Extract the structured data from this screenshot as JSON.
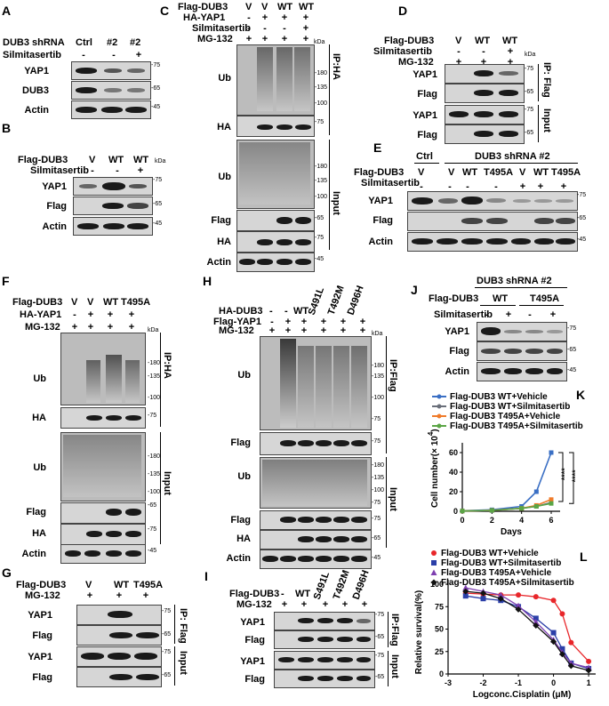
{
  "panels": {
    "A": "A",
    "B": "B",
    "C": "C",
    "D": "D",
    "E": "E",
    "F": "F",
    "G": "G",
    "H": "H",
    "I": "I",
    "J": "J",
    "K": "K",
    "L": "L"
  },
  "common": {
    "kda": "kDa",
    "plus": "+",
    "minus": "-"
  },
  "A": {
    "shrna": "DUB3 shRNA",
    "silm": "Silmitasertib",
    "cols": [
      "Ctrl",
      "#2",
      "#2"
    ],
    "silm_signs": [
      "-",
      "-",
      "+"
    ],
    "rows": [
      {
        "label": "YAP1",
        "kda": "-75"
      },
      {
        "label": "DUB3",
        "kda": "-65"
      },
      {
        "label": "Actin",
        "kda": "-45"
      }
    ]
  },
  "B": {
    "flag": "Flag-DUB3",
    "silm": "Silmitasertib",
    "cols": [
      "V",
      "WT",
      "WT"
    ],
    "silm_signs": [
      "-",
      "-",
      "+"
    ],
    "rows": [
      {
        "label": "YAP1",
        "kda": "-75"
      },
      {
        "label": "Flag",
        "kda": "-65"
      },
      {
        "label": "Actin",
        "kda": "-45"
      }
    ]
  },
  "C": {
    "flag": "Flag-DUB3",
    "ha": "HA-YAP1",
    "silm": "Silmitasertib",
    "mg": "MG-132",
    "flag_cols": [
      "V",
      "V",
      "WT",
      "WT"
    ],
    "ha_signs": [
      "-",
      "+",
      "+",
      "+"
    ],
    "silm_signs": [
      "-",
      "-",
      "-",
      "+"
    ],
    "mg_signs": [
      "+",
      "+",
      "+",
      "+"
    ],
    "rows": [
      "Ub",
      "HA",
      "Ub",
      "Flag",
      "HA",
      "Actin"
    ],
    "kda_ub": [
      "-180",
      "-135",
      "-100"
    ],
    "kda_ha": "-75",
    "kda_ub2": [
      "-180",
      "-135",
      "-100"
    ],
    "kda_flag": "-65",
    "kda_ha2": "-75",
    "kda_actin": "-45",
    "ip": "IP:HA",
    "input": "Input"
  },
  "D": {
    "flag": "Flag-DUB3",
    "silm": "Silmitasertib",
    "mg": "MG-132",
    "cols": [
      "V",
      "WT",
      "WT"
    ],
    "silm_signs": [
      "-",
      "-",
      "+"
    ],
    "mg_signs": [
      "+",
      "+",
      "+"
    ],
    "rows": [
      "YAP1",
      "Flag",
      "YAP1",
      "Flag"
    ],
    "kda": [
      "-75",
      "-65",
      "-75",
      "-65"
    ],
    "ip": "IP: Flag",
    "input": "Input"
  },
  "E": {
    "ctrl": "Ctrl",
    "shrna": "DUB3 shRNA #2",
    "flag": "Flag-DUB3",
    "silm": "Silmitasertib",
    "cols": [
      "V",
      "V",
      "WT",
      "T495A",
      "V",
      "WT",
      "T495A"
    ],
    "silm_signs": [
      "-",
      "-",
      "-",
      "-",
      "+",
      "+",
      "+"
    ],
    "rows": [
      {
        "label": "YAP1",
        "kda": "-75"
      },
      {
        "label": "Flag",
        "kda": "-65"
      },
      {
        "label": "Actin",
        "kda": "-45"
      }
    ]
  },
  "F": {
    "flag": "Flag-DUB3",
    "ha": "HA-YAP1",
    "mg": "MG-132",
    "cols": [
      "V",
      "V",
      "WT",
      "T495A"
    ],
    "ha_signs": [
      "-",
      "+",
      "+",
      "+"
    ],
    "mg_signs": [
      "+",
      "+",
      "+",
      "+"
    ],
    "rows": [
      "Ub",
      "HA",
      "Ub",
      "Flag",
      "HA",
      "Actin"
    ],
    "kda_ub": [
      "-180",
      "-135",
      "-100"
    ],
    "kda_ha": "-75",
    "kda_ub2": [
      "-180",
      "-135",
      "-100"
    ],
    "kda_flag": "-65",
    "kda_ha2": "-75",
    "kda_actin": "-45",
    "ip": "IP:HA",
    "input": "Input"
  },
  "G": {
    "flag": "Flag-DUB3",
    "mg": "MG-132",
    "cols": [
      "V",
      "WT",
      "T495A"
    ],
    "mg_signs": [
      "+",
      "+",
      "+"
    ],
    "rows": [
      "YAP1",
      "Flag",
      "YAP1",
      "Flag"
    ],
    "kda": [
      "-75",
      "-65",
      "-75",
      "-65"
    ],
    "ip": "IP: Flag",
    "input": "Input"
  },
  "H": {
    "ha": "HA-DUB3",
    "flag": "Flag-YAP1",
    "mg": "MG-132",
    "cols": [
      "-",
      "-",
      "WT",
      "S491L",
      "T492M",
      "D496H"
    ],
    "flag_signs": [
      "-",
      "+",
      "+",
      "+",
      "+",
      "+"
    ],
    "mg_signs": [
      "+",
      "+",
      "+",
      "+",
      "+",
      "+"
    ],
    "rows": [
      "Ub",
      "Flag",
      "Ub",
      "Flag",
      "HA",
      "Actin"
    ],
    "kda_ub": [
      "-180",
      "-135",
      "-100",
      "-75"
    ],
    "kda_flag": "-75",
    "kda_ub2": [
      "-180",
      "-135",
      "-100",
      "-75"
    ],
    "kda_flag2": "-75",
    "kda_ha": "-65",
    "kda_actin": "-45",
    "ip": "IP:Flag",
    "input": "Input"
  },
  "I": {
    "flag": "Flag-DUB3",
    "mg": "MG-132",
    "cols": [
      "-",
      "WT",
      "S491L",
      "T492M",
      "D496H"
    ],
    "mg_signs": [
      "+",
      "+",
      "+",
      "+",
      "+"
    ],
    "rows": [
      "YAP1",
      "Flag",
      "YAP1",
      "Flag"
    ],
    "kda": [
      "-75",
      "-65",
      "-75",
      "-65"
    ],
    "ip": "IP:Flag",
    "input": "Input"
  },
  "J": {
    "shrna": "DUB3 shRNA #2",
    "flag": "Flag-DUB3",
    "silm": "Silmitasertib",
    "groups": [
      "WT",
      "T495A"
    ],
    "silm_signs": [
      "-",
      "+",
      "-",
      "+"
    ],
    "rows": [
      {
        "label": "YAP1",
        "kda": "-75"
      },
      {
        "label": "Flag",
        "kda": "-65"
      },
      {
        "label": "Actin",
        "kda": "-45"
      }
    ]
  },
  "colors": {
    "blue": "#3a6fc4",
    "grey": "#6a6f7a",
    "orange": "#f07b2a",
    "green": "#5aa545",
    "red": "#e8262a",
    "navy": "#2b3fa8",
    "purple": "#7e3fb0",
    "black": "#111111"
  },
  "chart_data": [
    {
      "type": "line",
      "panel": "K",
      "ylabel_main": "Cell number(× 10",
      "ylabel_exp": "4",
      "ylabel_close": ")",
      "xlabel": "Days",
      "x": [
        0,
        2,
        4,
        5,
        6
      ],
      "xticks": [
        "0",
        "2",
        "4",
        "6"
      ],
      "yticks": [
        "0",
        "20",
        "40",
        "60"
      ],
      "ylim": [
        0,
        70
      ],
      "xlim": [
        0,
        6.6
      ],
      "series": [
        {
          "name": "Flag-DUB3 WT+Vehicle",
          "color": "#3a6fc4",
          "values": [
            0.5,
            1.5,
            5,
            20,
            60
          ]
        },
        {
          "name": "Flag-DUB3 WT+Silmitasertib",
          "color": "#6a6f7a",
          "values": [
            0.3,
            0.8,
            3,
            5,
            9
          ]
        },
        {
          "name": "Flag-DUB3 T495A+Vehicle",
          "color": "#f07b2a",
          "values": [
            0.3,
            1,
            3,
            6,
            12
          ]
        },
        {
          "name": "Flag-DUB3 T495A+Silmitasertib",
          "color": "#5aa545",
          "values": [
            0.3,
            0.9,
            3,
            5,
            8
          ]
        }
      ],
      "sig": [
        "****",
        "****"
      ]
    },
    {
      "type": "scatter",
      "panel": "L",
      "ylabel": "Relative survival(%)",
      "xlabel": "Logconc.Cisplatin (μM)",
      "xticks": [
        "-3",
        "-2",
        "-1",
        "0",
        "1"
      ],
      "yticks": [
        "0",
        "25",
        "50",
        "75",
        "100"
      ],
      "xlim": [
        -3,
        1.2
      ],
      "ylim": [
        0,
        105
      ],
      "x": [
        -2.5,
        -2,
        -1.5,
        -1,
        -0.5,
        0,
        0.25,
        0.5,
        1
      ],
      "series": [
        {
          "name": "Flag-DUB3 WT+Vehicle",
          "color": "#e8262a",
          "marker": "circle",
          "values": [
            90,
            89,
            88,
            88,
            86,
            82,
            67,
            35,
            14
          ]
        },
        {
          "name": "Flag-DUB3 WT+Silmitasertib",
          "color": "#2b3fa8",
          "marker": "square",
          "values": [
            87,
            84,
            82,
            75,
            62,
            46,
            28,
            12,
            6
          ]
        },
        {
          "name": "Flag-DUB3 T495A+Vehicle",
          "color": "#7e3fb0",
          "marker": "triangle",
          "values": [
            96,
            92,
            88,
            76,
            58,
            38,
            24,
            12,
            7
          ]
        },
        {
          "name": "Flag-DUB3 T495A+Silmitasertib",
          "color": "#111111",
          "marker": "diamond",
          "values": [
            92,
            90,
            84,
            72,
            54,
            36,
            22,
            9,
            4
          ]
        }
      ]
    }
  ]
}
